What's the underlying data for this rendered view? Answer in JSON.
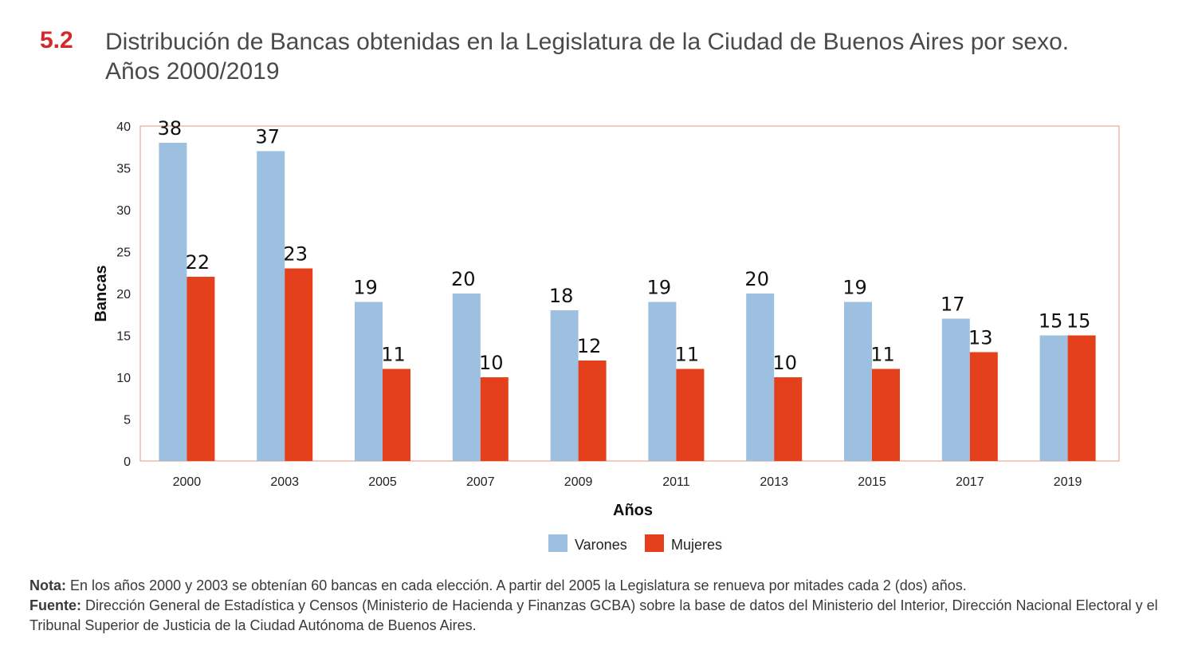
{
  "header": {
    "number": "5.2",
    "title": "Distribución de Bancas obtenidas en la Legislatura de la Ciudad de Buenos Aires por sexo. Años 2000/2019"
  },
  "colors": {
    "varones": "#9dbfe0",
    "mujeres": "#e5401c",
    "frame": "#e8a79a",
    "title_number": "#d02a2a"
  },
  "chart_data": {
    "type": "bar",
    "title": "",
    "xlabel": "Años",
    "ylabel": "Bancas",
    "ylim": [
      0,
      40
    ],
    "yticks": [
      0,
      5,
      10,
      15,
      20,
      25,
      30,
      35,
      40
    ],
    "categories": [
      "2000",
      "2003",
      "2005",
      "2007",
      "2009",
      "2011",
      "2013",
      "2015",
      "2017",
      "2019"
    ],
    "series": [
      {
        "name": "Varones",
        "values": [
          38,
          37,
          19,
          20,
          18,
          19,
          20,
          19,
          17,
          15
        ]
      },
      {
        "name": "Mujeres",
        "values": [
          22,
          23,
          11,
          10,
          12,
          11,
          10,
          11,
          13,
          15
        ]
      }
    ],
    "legend": "bottom-center",
    "grid": false
  },
  "notes": {
    "nota_label": "Nota:",
    "nota_text": " En los años 2000 y 2003 se obtenían 60 bancas en cada elección. A partir del 2005 la Legislatura se renueva por mitades cada 2 (dos) años.",
    "fuente_label": "Fuente:",
    "fuente_text": " Dirección General de Estadística y Censos (Ministerio de Hacienda y Finanzas GCBA) sobre la base de datos del Ministerio del Interior, Dirección Nacional Electoral y el Tribunal Superior de Justicia de la Ciudad Autónoma de Buenos Aires."
  }
}
